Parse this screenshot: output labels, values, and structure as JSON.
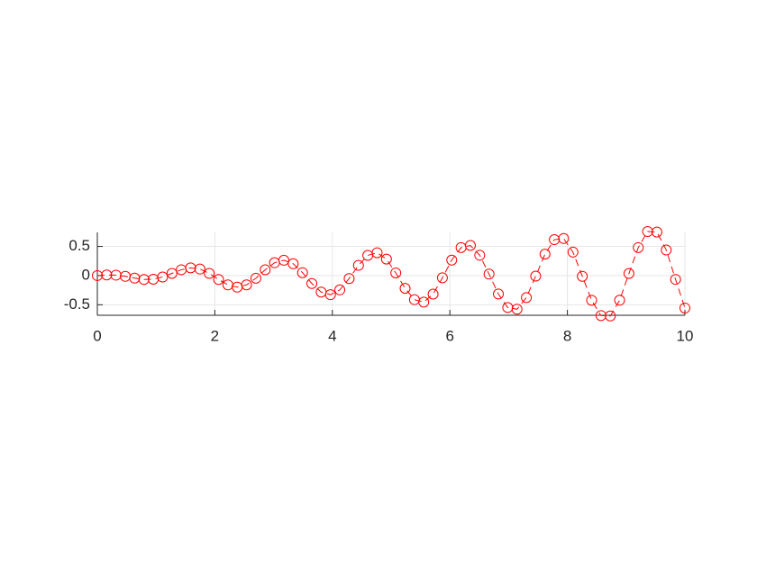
{
  "chart_data": {
    "type": "line",
    "x": [
      0,
      0.1587,
      0.3175,
      0.4762,
      0.6349,
      0.7937,
      0.9524,
      1.1111,
      1.2698,
      1.4286,
      1.5873,
      1.746,
      1.9048,
      2.0635,
      2.2222,
      2.381,
      2.5397,
      2.6984,
      2.8571,
      3.0159,
      3.1746,
      3.3333,
      3.4921,
      3.6508,
      3.8095,
      3.9683,
      4.127,
      4.2857,
      4.4444,
      4.6032,
      4.7619,
      4.9206,
      5.0794,
      5.2381,
      5.3968,
      5.5556,
      5.7143,
      5.873,
      6.0317,
      6.1905,
      6.3492,
      6.5079,
      6.6667,
      6.8254,
      6.9841,
      7.1429,
      7.3016,
      7.4603,
      7.619,
      7.7778,
      7.9365,
      8.0952,
      8.254,
      8.4127,
      8.5714,
      8.7302,
      8.8889,
      9.0476,
      9.2063,
      9.3651,
      9.5238,
      9.6825,
      9.8413,
      10
    ],
    "series": [
      {
        "color": "#ff0000",
        "line_style": "dashed",
        "marker": "circle",
        "values": [
          0,
          0.0107,
          0.0078,
          -0.013,
          -0.0437,
          -0.0661,
          -0.0626,
          -0.0245,
          0.0379,
          0.1004,
          0.1322,
          0.1122,
          0.0372,
          -0.0667,
          -0.1593,
          -0.1978,
          -0.1592,
          -0.0456,
          0.0993,
          0.2202,
          0.263,
          0.2033,
          0.05,
          -0.1357,
          -0.2829,
          -0.3274,
          -0.2445,
          -0.0504,
          0.1756,
          0.3468,
          0.3913,
          0.2825,
          0.0461,
          -0.2191,
          -0.4124,
          -0.4542,
          -0.3176,
          -0.0382,
          0.2654,
          0.4793,
          0.5159,
          0.3492,
          0.0256,
          -0.3151,
          -0.5471,
          -0.5762,
          -0.3773,
          -0.0093,
          0.3676,
          0.6157,
          0.6349,
          0.4014,
          -0.0117,
          -0.4228,
          -0.685,
          -0.6919,
          -0.4222,
          0.0362,
          0.4803,
          0.7547,
          0.7461,
          0.4381,
          -0.0656,
          -0.5559
        ]
      }
    ],
    "xlim": [
      0,
      10
    ],
    "xticks": [
      0,
      2,
      4,
      6,
      8,
      10
    ],
    "ylim": [
      -0.68,
      0.74
    ],
    "yticks": [
      -0.5,
      0,
      0.5
    ],
    "grid": true
  }
}
